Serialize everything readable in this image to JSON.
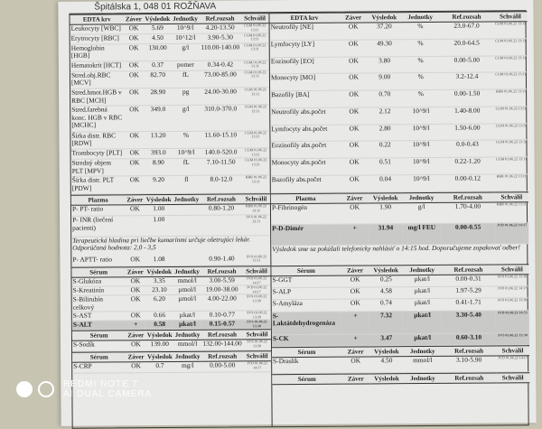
{
  "address": "Špitálska 1, 048 01 ROŽŇAVA",
  "columns": [
    "Záver",
    "Výsledok",
    "Jednotky",
    "Ref.rozsah",
    "Schválil"
  ],
  "left": [
    {
      "title": "EDTA krv",
      "rows": [
        {
          "name": "Leukocyty [WBC]",
          "zaver": "OK",
          "vysledok": "5.69",
          "jednotky": "10^9/l",
          "ref": "4.20-13.50",
          "schvalil": "CGM 01.06.22 13:11"
        },
        {
          "name": "Erytrocyty [RBC]",
          "zaver": "OK",
          "vysledok": "4.50",
          "jednotky": "10^12/l",
          "ref": "3.90-5.30",
          "schvalil": "CGM 01.06.22 13:11"
        },
        {
          "name": "Hemoglobin [HGB]",
          "zaver": "OK",
          "vysledok": "130.00",
          "jednotky": "g/l",
          "ref": "110.00-140.00",
          "schvalil": "CGM 01.06.22 13:11"
        },
        {
          "name": "Hematokrit [HCT]",
          "zaver": "OK",
          "vysledok": "0.37",
          "jednotky": "pomer",
          "ref": "0.34-0.42",
          "schvalil": "CGM 01.06.22 13:11"
        },
        {
          "name": "Stred.obj.RBC [MCV]",
          "zaver": "OK",
          "vysledok": "82.70",
          "jednotky": "fL",
          "ref": "73.00-85.00",
          "schvalil": "CGM 01.06.22 13:11"
        },
        {
          "name": "Stred.hmot.HGB v RBC [MCH]",
          "zaver": "OK",
          "vysledok": "28.90",
          "jednotky": "pg",
          "ref": "24.00-30.00",
          "schvalil": "CGM 01.06.22 13:11"
        },
        {
          "name": "Stred.farebná konc. HGB v RBC [MCHC]",
          "zaver": "OK",
          "vysledok": "349.0",
          "jednotky": "g/l",
          "ref": "310.0-370.0",
          "schvalil": "CGM 01.06.22 13:11"
        },
        {
          "name": "Šírka distr. RBC [RDW]",
          "zaver": "OK",
          "vysledok": "13.20",
          "jednotky": "%",
          "ref": "11.60-15.10",
          "schvalil": "CGM 01.06.22 13:11"
        },
        {
          "name": "Trombocyty [PLT]",
          "zaver": "OK",
          "vysledok": "393.0",
          "jednotky": "10^9/l",
          "ref": "140.0-520.0",
          "schvalil": "CGM 01.06.22 13:11"
        },
        {
          "name": "Stredný objem PLT [MPV]",
          "zaver": "OK",
          "vysledok": "8.90",
          "jednotky": "fL",
          "ref": "7.10-11.50",
          "schvalil": "CGM 01.06.22 13:11"
        },
        {
          "name": "Šírka distr. PLT [PDW]",
          "zaver": "OK",
          "vysledok": "9.20",
          "jednotky": "fl",
          "ref": "8.0-12.0",
          "schvalil": "RBR 01.06.22 13:11"
        }
      ]
    },
    {
      "title": "Plazma",
      "rows": [
        {
          "name": "P- PT- ratio",
          "zaver": "OK",
          "vysledok": "1.00",
          "jednotky": "",
          "ref": "0.80-1.20",
          "schvalil": "RBR 01.06.22 13:11"
        },
        {
          "name": "P- INR (liečení pacienti)",
          "zaver": "",
          "vysledok": "1.00",
          "jednotky": "",
          "ref": "",
          "schvalil": "SVS 01.06.22 13:11"
        },
        {
          "note": "Terapeutická hladina pri liečbe kumarínmi určuje ošetrujúci lekár. Odporúčaná hodnota: 2,0 - 3,5"
        },
        {
          "name": "P- APTT- ratio",
          "zaver": "OK",
          "vysledok": "1.08",
          "jednotky": "",
          "ref": "0.90-1.40",
          "schvalil": "SVS 01.06.22 13:11"
        }
      ]
    },
    {
      "title": "Sérum",
      "rows": [
        {
          "name": "S-Glukóza",
          "zaver": "OK",
          "vysledok": "3.35",
          "jednotky": "mmol/l",
          "ref": "3.00-5.59",
          "schvalil": "JVD 01.06.22 14:17"
        },
        {
          "name": "S-Kreatinín",
          "zaver": "OK",
          "vysledok": "23.10",
          "jednotky": "µmol/l",
          "ref": "19.00-38.00",
          "schvalil": "JVD 01.06.22 14:17"
        },
        {
          "name": "S-Bilirubín celkový",
          "zaver": "OK",
          "vysledok": "6.20",
          "jednotky": "µmol/l",
          "ref": "4.00-22.00",
          "schvalil": "SVS 01.06.22 13:30"
        },
        {
          "name": "S-AST",
          "zaver": "OK",
          "vysledok": "0.66",
          "jednotky": "µkat/l",
          "ref": "0.10-0.77",
          "schvalil": "SVS 01.06.22 13:30"
        },
        {
          "name": "S-ALT",
          "zaver": "+",
          "vysledok": "0.58",
          "jednotky": "µkat/l",
          "ref": "0.15-0.57",
          "schvalil": "SVS 01.06.22 13:30",
          "high": true
        }
      ]
    },
    {
      "title": "Sérum",
      "rows": [
        {
          "name": "S-Sodík",
          "zaver": "OK",
          "vysledok": "139.00",
          "jednotky": "mmol/l",
          "ref": "132.00-144.00",
          "schvalil": "SVS 01.06.22 13:30"
        }
      ]
    },
    {
      "title": "Sérum",
      "rows": [
        {
          "name": "S-CRP",
          "zaver": "OK",
          "vysledok": "0.7",
          "jednotky": "mg/l",
          "ref": "0.00-5.00",
          "schvalil": "JVD 01.06.22 14:17"
        }
      ]
    }
  ],
  "right": [
    {
      "title": "EDTA krv",
      "rows": [
        {
          "name": "Neutrofily [NE]",
          "zaver": "OK",
          "vysledok": "37.20",
          "jednotky": "%",
          "ref": "23.0-67.0",
          "schvalil": "CGM 01.06.22 13:11"
        },
        {
          "name": "Lymfocyty [LY]",
          "zaver": "OK",
          "vysledok": "49.30",
          "jednotky": "%",
          "ref": "20.0-64.5",
          "schvalil": "CGM 01.06.22 13:11"
        },
        {
          "name": "Eozinofily [EO]",
          "zaver": "OK",
          "vysledok": "3.80",
          "jednotky": "%",
          "ref": "0.00-5.00",
          "schvalil": "CGM 01.06.22 13:11"
        },
        {
          "name": "Monocyty [MO]",
          "zaver": "OK",
          "vysledok": "9.00",
          "jednotky": "%",
          "ref": "3.2-12.4",
          "schvalil": "CGM 01.06.22 13:11"
        },
        {
          "name": "Bazofily [BA]",
          "zaver": "OK",
          "vysledok": "0.70",
          "jednotky": "%",
          "ref": "0.00-1.50",
          "schvalil": "RBR 01.06.22 13:11"
        },
        {
          "name": "Neutrofily abs.počet",
          "zaver": "OK",
          "vysledok": "2.12",
          "jednotky": "10^9/l",
          "ref": "1.40-8.00",
          "schvalil": "CGM 01.06.22 13:11"
        },
        {
          "name": "Lymfocyty abs.počet",
          "zaver": "OK",
          "vysledok": "2.80",
          "jednotky": "10^9/l",
          "ref": "1.50-6.00",
          "schvalil": "CGM 01.06.22 13:11"
        },
        {
          "name": "Eozinofily abs.počet",
          "zaver": "OK",
          "vysledok": "0.22",
          "jednotky": "10^9/l",
          "ref": "0.0-0.43",
          "schvalil": "CGM 01.06.22 13:11"
        },
        {
          "name": "Monocyty abs.počet",
          "zaver": "OK",
          "vysledok": "0.51",
          "jednotky": "10^9/l",
          "ref": "0.22-1.20",
          "schvalil": "CGM 01.06.22 13:11"
        },
        {
          "name": "Bazofily abs.počet",
          "zaver": "OK",
          "vysledok": "0.04",
          "jednotky": "10^9/l",
          "ref": "0.00-0.12",
          "schvalil": "RBR 01.06.22 13:11"
        }
      ]
    },
    {
      "title": "Plazma",
      "rows": [
        {
          "name": "P-Fibrinogén",
          "zaver": "OK",
          "vysledok": "1.90",
          "jednotky": "g/l",
          "ref": "1.70-4.00",
          "schvalil": "RBR 01.06.22 13:11"
        },
        {
          "name": "P-D-Dimér",
          "zaver": "+",
          "vysledok": "31.94",
          "jednotky": "mg/l FEU",
          "ref": "0.00-0.55",
          "schvalil": "JVD 01.06.22 14:17",
          "high": true
        },
        {
          "note": "Výsledok sme sa pokúšali telefonicky nahlásiť o 14:15 hod. Doporučujeme zopakovať odber!"
        }
      ]
    },
    {
      "title": "Sérum",
      "rows": [
        {
          "name": "S-GGT",
          "zaver": "OK",
          "vysledok": "0.25",
          "jednotky": "µkat/l",
          "ref": "0.00-0.31",
          "schvalil": "SVS 01.06.22 13:30"
        },
        {
          "name": "S-ALP",
          "zaver": "OK",
          "vysledok": "4.58",
          "jednotky": "µkat/l",
          "ref": "1.97-5.29",
          "schvalil": "JVD 01.06.22 14:17"
        },
        {
          "name": "S-Amyláza",
          "zaver": "OK",
          "vysledok": "0.74",
          "jednotky": "µkat/l",
          "ref": "0.41-1.71",
          "schvalil": "SVS 01.06.22 13:30"
        },
        {
          "name": "S-Laktátdehydrogenáza",
          "zaver": "+",
          "vysledok": "7.32",
          "jednotky": "µkat/l",
          "ref": "3.30-5.40",
          "schvalil": "JVD 01.06.22 14:53",
          "high": true
        },
        {
          "name": "S-CK",
          "zaver": "+",
          "vysledok": "3.47",
          "jednotky": "µkat/l",
          "ref": "0.60-3.10",
          "schvalil": "SVS 01.06.22 13:30",
          "high": true
        }
      ]
    },
    {
      "title": "Sérum",
      "rows": [
        {
          "name": "S-Draslík",
          "zaver": "OK",
          "vysledok": "4.50",
          "jednotky": "mmol/l",
          "ref": "3.10-5.90",
          "schvalil": "JVD 01.06.22 14:17"
        }
      ]
    },
    {
      "title": "Sérum",
      "rows": []
    }
  ],
  "watermark": {
    "line1": "REDMI NOTE 7",
    "line2": "AI DUAL CAMERA"
  }
}
